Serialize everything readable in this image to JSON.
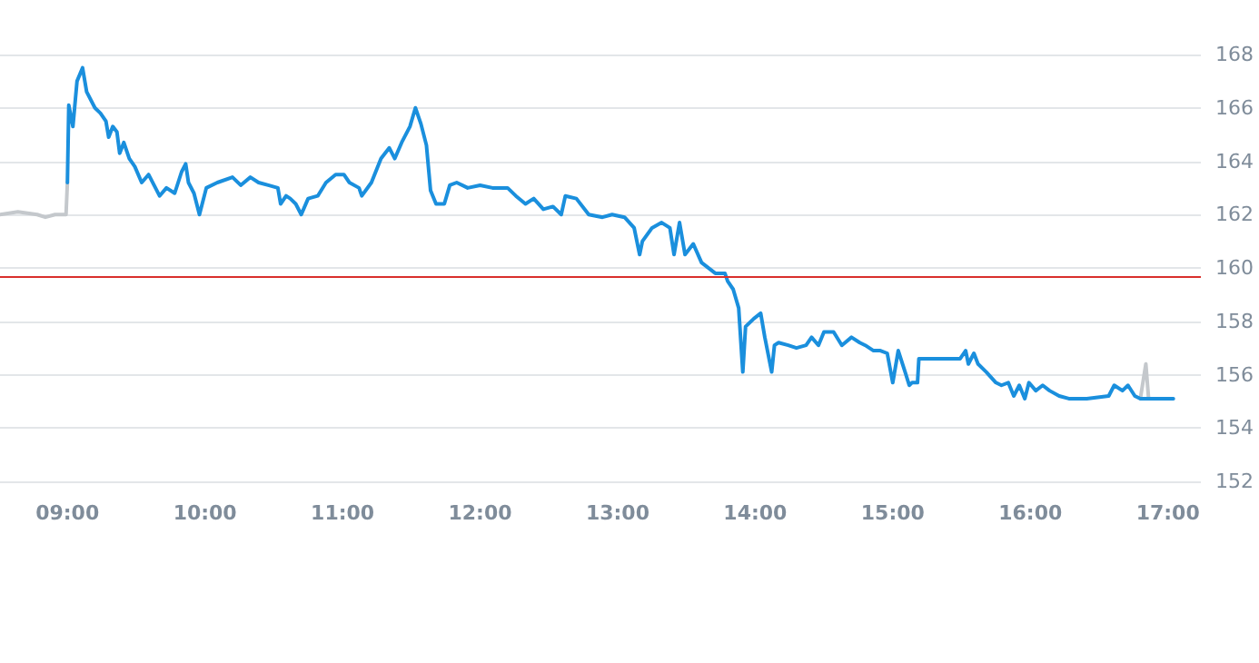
{
  "chart_data": {
    "type": "line",
    "xlim": [
      8.51,
      17.24
    ],
    "ylim": [
      152,
      168
    ],
    "xticks": [
      {
        "value": 9,
        "label": "09:00"
      },
      {
        "value": 10,
        "label": "10:00"
      },
      {
        "value": 11,
        "label": "11:00"
      },
      {
        "value": 12,
        "label": "12:00"
      },
      {
        "value": 13,
        "label": "13:00"
      },
      {
        "value": 14,
        "label": "14:00"
      },
      {
        "value": 15,
        "label": "15:00"
      },
      {
        "value": 16,
        "label": "16:00"
      },
      {
        "value": 17,
        "label": "17:00"
      }
    ],
    "yticks": [
      152,
      154,
      156,
      158,
      160,
      162,
      164,
      166,
      168
    ],
    "grid": "y",
    "marker": "none",
    "line_style": "solid",
    "ref_lines": [
      {
        "axis": "y",
        "value": 159.7,
        "color": "#d9302c"
      }
    ],
    "series": [
      {
        "color": "#c4c8cc",
        "x": [
          8.51,
          8.64,
          8.78,
          8.84,
          8.91,
          8.99,
          9.0
        ],
        "values": [
          162.0,
          162.1,
          162.0,
          161.9,
          162.0,
          162.0,
          163.2
        ]
      },
      {
        "color": "#c4c8cc",
        "x": [
          16.8,
          16.84,
          16.86
        ],
        "values": [
          155.1,
          156.4,
          155.1
        ]
      },
      {
        "color": "#1a8fdd",
        "x": [
          9.0,
          9.01,
          9.04,
          9.07,
          9.11,
          9.14,
          9.2,
          9.24,
          9.28,
          9.3,
          9.33,
          9.36,
          9.38,
          9.41,
          9.45,
          9.49,
          9.54,
          9.59,
          9.63,
          9.67,
          9.72,
          9.78,
          9.83,
          9.86,
          9.88,
          9.92,
          9.96,
          10.01,
          10.09,
          10.2,
          10.26,
          10.33,
          10.39,
          10.46,
          10.53,
          10.55,
          10.59,
          10.62,
          10.66,
          10.7,
          10.75,
          10.82,
          10.88,
          10.95,
          11.01,
          11.05,
          11.12,
          11.14,
          11.21,
          11.28,
          11.34,
          11.38,
          11.43,
          11.49,
          11.53,
          11.57,
          11.61,
          11.64,
          11.68,
          11.74,
          11.78,
          11.83,
          11.91,
          12.0,
          12.09,
          12.2,
          12.26,
          12.33,
          12.39,
          12.46,
          12.53,
          12.59,
          12.62,
          12.7,
          12.79,
          12.89,
          12.96,
          13.05,
          13.12,
          13.16,
          13.18,
          13.25,
          13.32,
          13.38,
          13.41,
          13.45,
          13.49,
          13.55,
          13.61,
          13.71,
          13.78,
          13.8,
          13.84,
          13.88,
          13.91,
          13.93,
          13.99,
          14.04,
          14.07,
          14.12,
          14.14,
          14.17,
          14.24,
          14.3,
          14.37,
          14.41,
          14.46,
          14.5,
          14.57,
          14.63,
          14.7,
          14.76,
          14.8,
          14.86,
          14.91,
          14.96,
          15.0,
          15.04,
          15.09,
          15.12,
          15.14,
          15.18,
          15.19,
          15.25,
          15.49,
          15.53,
          15.55,
          15.59,
          15.62,
          15.68,
          15.75,
          15.79,
          15.84,
          15.88,
          15.92,
          15.96,
          15.99,
          16.04,
          16.09,
          16.14,
          16.21,
          16.28,
          16.41,
          16.57,
          16.61,
          16.67,
          16.71,
          16.76,
          16.8,
          17.04
        ],
        "values": [
          163.2,
          166.1,
          165.3,
          167.0,
          167.5,
          166.6,
          166.0,
          165.8,
          165.5,
          164.9,
          165.3,
          165.1,
          164.3,
          164.7,
          164.1,
          163.8,
          163.2,
          163.5,
          163.1,
          162.7,
          163.0,
          162.8,
          163.6,
          163.9,
          163.2,
          162.8,
          162.0,
          163.0,
          163.2,
          163.4,
          163.1,
          163.4,
          163.2,
          163.1,
          163.0,
          162.4,
          162.7,
          162.6,
          162.4,
          162.0,
          162.6,
          162.7,
          163.2,
          163.5,
          163.5,
          163.2,
          163.0,
          162.7,
          163.2,
          164.1,
          164.5,
          164.1,
          164.7,
          165.3,
          166.0,
          165.4,
          164.6,
          162.9,
          162.4,
          162.4,
          163.1,
          163.2,
          163.0,
          163.1,
          163.0,
          163.0,
          162.7,
          162.4,
          162.6,
          162.2,
          162.3,
          162.0,
          162.7,
          162.6,
          162.0,
          161.9,
          162.0,
          161.9,
          161.5,
          160.5,
          161.0,
          161.5,
          161.7,
          161.5,
          160.5,
          161.7,
          160.5,
          160.9,
          160.2,
          159.8,
          159.8,
          159.5,
          159.2,
          158.5,
          156.1,
          157.8,
          158.1,
          158.3,
          157.4,
          156.1,
          157.1,
          157.2,
          157.1,
          157.0,
          157.1,
          157.4,
          157.1,
          157.6,
          157.6,
          157.1,
          157.4,
          157.2,
          157.1,
          156.9,
          156.9,
          156.8,
          155.7,
          156.9,
          156.1,
          155.6,
          155.7,
          155.7,
          156.6,
          156.6,
          156.6,
          156.9,
          156.4,
          156.8,
          156.4,
          156.1,
          155.7,
          155.6,
          155.7,
          155.2,
          155.6,
          155.1,
          155.7,
          155.4,
          155.6,
          155.4,
          155.2,
          155.1,
          155.1,
          155.2,
          155.6,
          155.4,
          155.6,
          155.2,
          155.1,
          155.1
        ]
      }
    ]
  }
}
